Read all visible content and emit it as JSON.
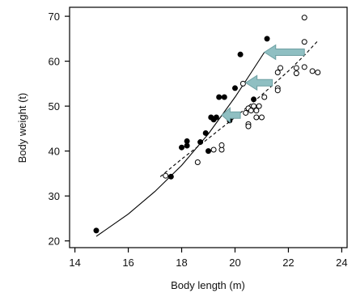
{
  "chart_data": {
    "type": "scatter",
    "title": "",
    "xlabel": "Body length (m)",
    "ylabel": "Body weight (t)",
    "xlim": [
      13.8,
      24.2
    ],
    "ylim": [
      18.5,
      72
    ],
    "x_ticks": [
      14,
      16,
      18,
      20,
      22,
      24
    ],
    "y_ticks": [
      20,
      30,
      40,
      50,
      60,
      70
    ],
    "grid": false,
    "legend": "none",
    "series": [
      {
        "marker": "filled-circle",
        "color": "#000000",
        "points": [
          [
            14.8,
            22.3
          ],
          [
            17.6,
            34.3
          ],
          [
            18.0,
            40.8
          ],
          [
            18.2,
            42.2
          ],
          [
            18.2,
            41.2
          ],
          [
            18.7,
            42.0
          ],
          [
            18.9,
            44.0
          ],
          [
            19.0,
            40.0
          ],
          [
            19.1,
            47.5
          ],
          [
            19.2,
            47.0
          ],
          [
            19.3,
            47.5
          ],
          [
            19.4,
            52.0
          ],
          [
            19.6,
            52.0
          ],
          [
            19.8,
            46.8
          ],
          [
            20.0,
            54.0
          ],
          [
            20.2,
            61.5
          ],
          [
            20.7,
            51.5
          ],
          [
            21.2,
            65.0
          ]
        ]
      },
      {
        "marker": "open-circle",
        "color": "#000000",
        "points": [
          [
            17.4,
            34.5
          ],
          [
            18.6,
            37.5
          ],
          [
            19.2,
            40.3
          ],
          [
            19.5,
            40.3
          ],
          [
            19.5,
            41.3
          ],
          [
            20.3,
            55.0
          ],
          [
            20.4,
            48.5
          ],
          [
            20.5,
            49.5
          ],
          [
            20.5,
            46.0
          ],
          [
            20.5,
            45.5
          ],
          [
            20.6,
            49.0
          ],
          [
            20.7,
            50.0
          ],
          [
            20.8,
            49.0
          ],
          [
            20.8,
            47.5
          ],
          [
            20.9,
            50.0
          ],
          [
            21.0,
            47.5
          ],
          [
            21.1,
            52.0
          ],
          [
            21.6,
            54.0
          ],
          [
            21.6,
            53.5
          ],
          [
            21.6,
            57.5
          ],
          [
            21.7,
            58.5
          ],
          [
            22.3,
            58.5
          ],
          [
            22.3,
            57.3
          ],
          [
            22.6,
            58.7
          ],
          [
            22.6,
            69.7
          ],
          [
            22.6,
            64.3
          ],
          [
            22.9,
            57.8
          ],
          [
            23.1,
            57.5
          ]
        ]
      }
    ],
    "curves": [
      {
        "style": "solid",
        "color": "#000000",
        "points": [
          [
            14.8,
            21.0
          ],
          [
            16.0,
            26.0
          ],
          [
            17.0,
            31.0
          ],
          [
            18.0,
            36.8
          ],
          [
            19.0,
            43.8
          ],
          [
            20.0,
            52.0
          ],
          [
            20.5,
            56.5
          ],
          [
            21.1,
            62.0
          ]
        ]
      },
      {
        "style": "dashed",
        "color": "#000000",
        "points": [
          [
            17.2,
            34.3
          ],
          [
            18.0,
            38.2
          ],
          [
            19.0,
            42.8
          ],
          [
            20.0,
            47.5
          ],
          [
            21.0,
            52.5
          ],
          [
            22.0,
            57.8
          ],
          [
            22.6,
            61.3
          ],
          [
            23.1,
            64.5
          ]
        ]
      }
    ],
    "annotations": [
      {
        "type": "arrow",
        "color": "#8fbfc2",
        "from": [
          22.6,
          62.0
        ],
        "to": [
          21.1,
          62.0
        ]
      },
      {
        "type": "arrow",
        "color": "#8fbfc2",
        "from": [
          21.4,
          55.2
        ],
        "to": [
          20.4,
          55.2
        ]
      },
      {
        "type": "arrow",
        "color": "#8fbfc2",
        "from": [
          20.2,
          48.0
        ],
        "to": [
          19.5,
          48.0
        ]
      }
    ]
  }
}
